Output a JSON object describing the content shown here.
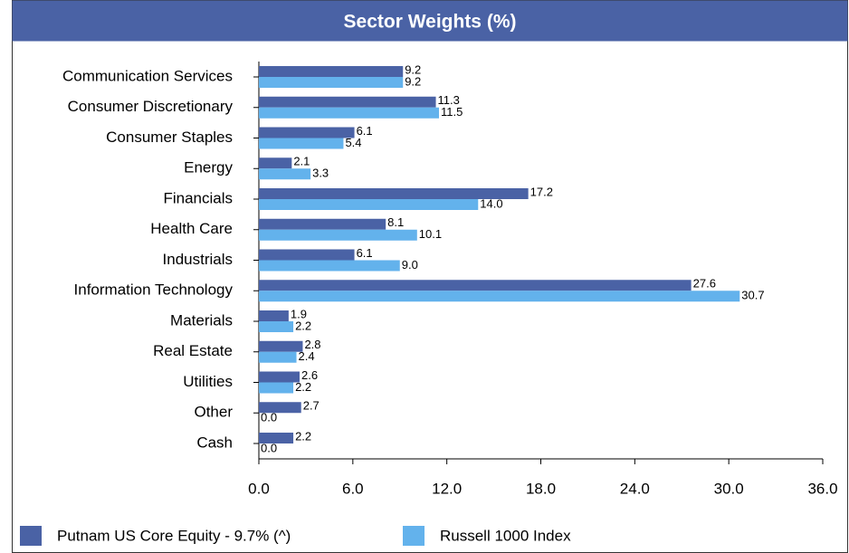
{
  "chart_data": {
    "type": "hbar",
    "title": "Sector Weights (%)",
    "categories": [
      "Communication Services",
      "Consumer Discretionary",
      "Consumer Staples",
      "Energy",
      "Financials",
      "Health Care",
      "Industrials",
      "Information Technology",
      "Materials",
      "Real Estate",
      "Utilities",
      "Other",
      "Cash"
    ],
    "series": [
      {
        "name": "Putnam US Core Equity - 9.7% (^)",
        "color": "#4a62a5",
        "values": [
          9.2,
          11.3,
          6.1,
          2.1,
          17.2,
          8.1,
          6.1,
          27.6,
          1.9,
          2.8,
          2.6,
          2.7,
          2.2
        ],
        "value_labels": [
          "9.2",
          "11.3",
          "6.1",
          "2.1",
          "17.2",
          "8.1",
          "6.1",
          "27.6",
          "1.9",
          "2.8",
          "2.6",
          "2.7",
          "2.2"
        ]
      },
      {
        "name": "Russell 1000 Index",
        "color": "#63b2ec",
        "values": [
          9.2,
          11.5,
          5.4,
          3.3,
          14.0,
          10.1,
          9.0,
          30.7,
          2.2,
          2.4,
          2.2,
          0.0,
          0.0
        ],
        "value_labels": [
          "9.2",
          "11.5",
          "5.4",
          "3.3",
          "14.0",
          "10.1",
          "9.0",
          "30.7",
          "2.2",
          "2.4",
          "2.2",
          "0.0",
          "0.0"
        ]
      }
    ],
    "xlim": [
      0,
      36
    ],
    "xticks": [
      {
        "value": 0,
        "label": "0.0"
      },
      {
        "value": 6,
        "label": "6.0"
      },
      {
        "value": 12,
        "label": "12.0"
      },
      {
        "value": 18,
        "label": "18.0"
      },
      {
        "value": 24,
        "label": "24.0"
      },
      {
        "value": 30,
        "label": "30.0"
      },
      {
        "value": 36,
        "label": "36.0"
      }
    ]
  }
}
